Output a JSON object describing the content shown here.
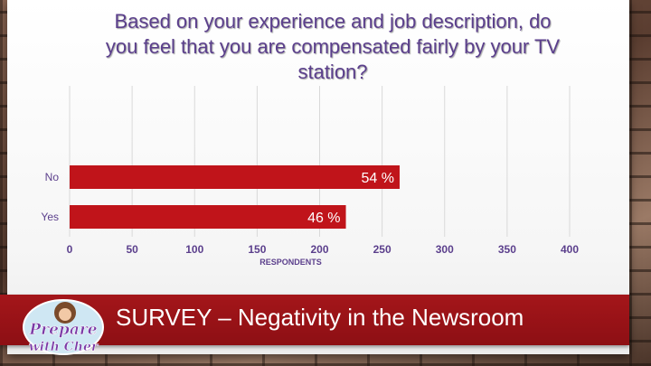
{
  "slide": {
    "title": "Based on your experience and job description, do you feel that you are compensated fairly by your TV station?",
    "banner": "SURVEY – Negativity in the Newsroom",
    "logo_text": "Prepare with Cher"
  },
  "colors": {
    "bar": "#c0141a",
    "title": "#5b3f8c",
    "banner": "#a4161a"
  },
  "chart_data": {
    "type": "bar",
    "orientation": "horizontal",
    "categories": [
      "No",
      "Yes"
    ],
    "values": [
      264,
      221
    ],
    "data_labels": [
      "54 %",
      "46 %"
    ],
    "xlabel": "RESPONDENTS",
    "ylabel": "",
    "xlim": [
      0,
      400
    ],
    "xticks": [
      "0",
      "50",
      "100",
      "150",
      "200",
      "250",
      "300",
      "350",
      "400"
    ],
    "grid": true
  }
}
